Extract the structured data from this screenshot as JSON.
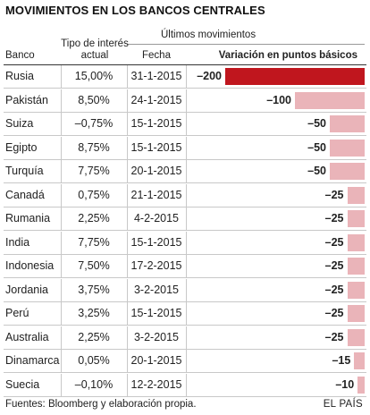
{
  "title": "MOVIMIENTOS EN LOS BANCOS CENTRALES",
  "headers": {
    "ultimos": "Últimos movimientos",
    "banco": "Banco",
    "tipo": "Tipo de interés actual",
    "fecha": "Fecha",
    "variacion": "Variación en puntos básicos"
  },
  "colors": {
    "highlight": "#c0161e",
    "normal": "#eab4b9"
  },
  "chart_data": {
    "type": "bar",
    "title": "MOVIMIENTOS EN LOS BANCOS CENTRALES",
    "xlabel": "",
    "ylabel": "Variación en puntos básicos",
    "xlim": [
      -200,
      0
    ],
    "categories": [
      "Rusia",
      "Pakistán",
      "Suiza",
      "Egipto",
      "Turquía",
      "Canadá",
      "Rumania",
      "India",
      "Indonesia",
      "Jordania",
      "Perú",
      "Australia",
      "Dinamarca",
      "Suecia"
    ],
    "rows": [
      {
        "banco": "Rusia",
        "tipo": "15,00%",
        "fecha": "31-1-2015",
        "value": -200,
        "label": "–200",
        "highlight": true
      },
      {
        "banco": "Pakistán",
        "tipo": "8,50%",
        "fecha": "24-1-2015",
        "value": -100,
        "label": "–100",
        "highlight": false
      },
      {
        "banco": "Suiza",
        "tipo": "–0,75%",
        "fecha": "15-1-2015",
        "value": -50,
        "label": "–50",
        "highlight": false
      },
      {
        "banco": "Egipto",
        "tipo": "8,75%",
        "fecha": "15-1-2015",
        "value": -50,
        "label": "–50",
        "highlight": false
      },
      {
        "banco": "Turquía",
        "tipo": "7,75%",
        "fecha": "20-1-2015",
        "value": -50,
        "label": "–50",
        "highlight": false
      },
      {
        "banco": "Canadá",
        "tipo": "0,75%",
        "fecha": "21-1-2015",
        "value": -25,
        "label": "–25",
        "highlight": false
      },
      {
        "banco": "Rumania",
        "tipo": "2,25%",
        "fecha": "4-2-2015",
        "value": -25,
        "label": "–25",
        "highlight": false
      },
      {
        "banco": "India",
        "tipo": "7,75%",
        "fecha": "15-1-2015",
        "value": -25,
        "label": "–25",
        "highlight": false
      },
      {
        "banco": "Indonesia",
        "tipo": "7,50%",
        "fecha": "17-2-2015",
        "value": -25,
        "label": "–25",
        "highlight": false
      },
      {
        "banco": "Jordania",
        "tipo": "3,75%",
        "fecha": "3-2-2015",
        "value": -25,
        "label": "–25",
        "highlight": false
      },
      {
        "banco": "Perú",
        "tipo": "3,25%",
        "fecha": "15-1-2015",
        "value": -25,
        "label": "–25",
        "highlight": false
      },
      {
        "banco": "Australia",
        "tipo": "2,25%",
        "fecha": "3-2-2015",
        "value": -25,
        "label": "–25",
        "highlight": false
      },
      {
        "banco": "Dinamarca",
        "tipo": "0,05%",
        "fecha": "20-1-2015",
        "value": -15,
        "label": "–15",
        "highlight": false
      },
      {
        "banco": "Suecia",
        "tipo": "–0,10%",
        "fecha": "12-2-2015",
        "value": -10,
        "label": "–10",
        "highlight": false
      }
    ]
  },
  "footer": {
    "source": "Fuentes: Bloomberg y elaboración propia.",
    "brand": "EL PAÍS"
  }
}
